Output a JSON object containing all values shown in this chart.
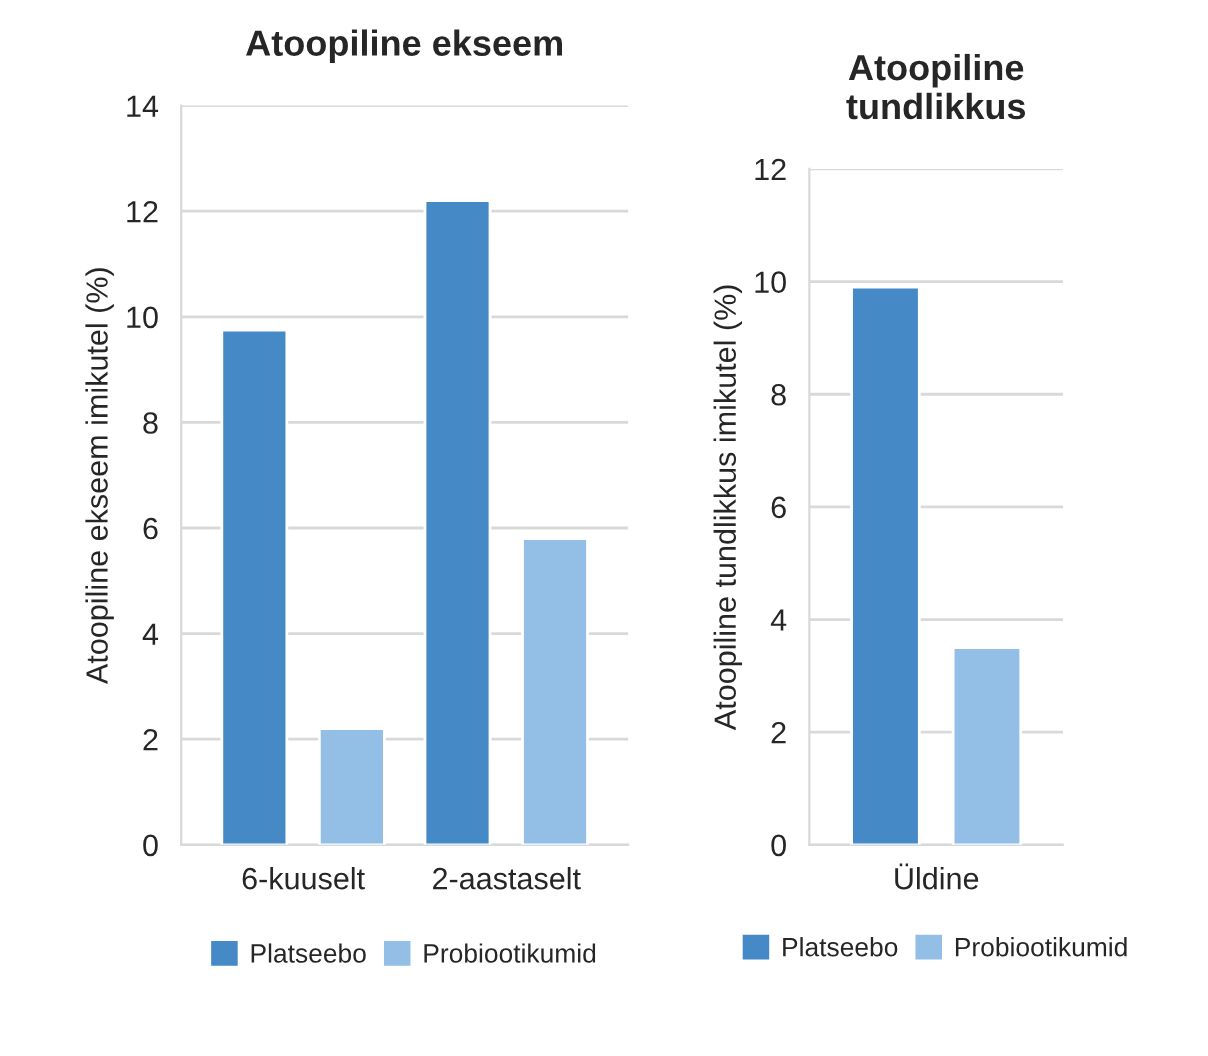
{
  "chart_data": [
    {
      "type": "bar",
      "title": "Atoopiline ekseem",
      "ylabel": "Atoopiline ekseem imikutel (%)",
      "categories": [
        "6-kuuselt",
        "2-aastaselt"
      ],
      "series": [
        {
          "name": "Platseebo",
          "color": "#4589c6",
          "values": [
            9.75,
            12.2
          ]
        },
        {
          "name": "Probiootikumid",
          "color": "#93bee6",
          "values": [
            2.2,
            5.8
          ]
        }
      ],
      "ylim": [
        0,
        14
      ],
      "yticks": [
        0,
        2,
        4,
        6,
        8,
        10,
        12,
        14
      ],
      "grid": "y",
      "legend": "bottom"
    },
    {
      "type": "bar",
      "title": "Atoopiline\ntundlikkus",
      "ylabel": "Atoopiline tundlikkus imikutel (%)",
      "categories": [
        "Üldine"
      ],
      "series": [
        {
          "name": "Platseebo",
          "color": "#4589c6",
          "values": [
            9.9
          ]
        },
        {
          "name": "Probiootikumid",
          "color": "#93bee6",
          "values": [
            3.5
          ]
        }
      ],
      "ylim": [
        0,
        12
      ],
      "yticks": [
        0,
        2,
        4,
        6,
        8,
        10,
        12
      ],
      "grid": "y",
      "legend": "bottom"
    }
  ]
}
